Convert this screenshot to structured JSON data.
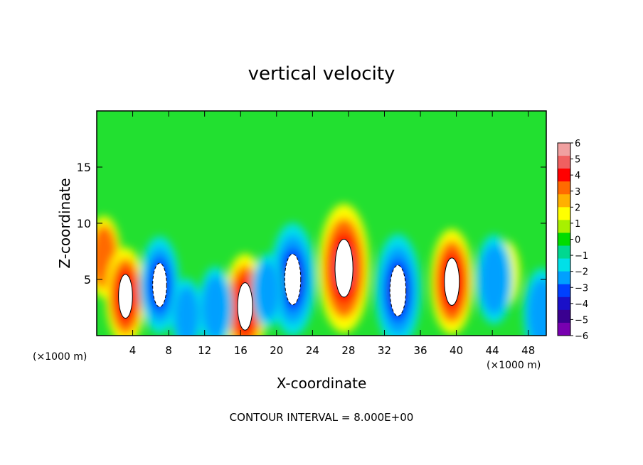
{
  "chart_data": {
    "type": "heatmap",
    "title": "vertical velocity",
    "xlabel": "X-coordinate",
    "ylabel": "Z-coordinate",
    "x_unit_left": "(×1000 m)",
    "x_unit_right": "(×1000 m)",
    "xlim": [
      0,
      50
    ],
    "ylim": [
      0,
      20
    ],
    "xticks": [
      4,
      8,
      12,
      16,
      20,
      24,
      28,
      32,
      36,
      40,
      44,
      48
    ],
    "yticks": [
      5,
      10,
      15
    ],
    "colorbar": {
      "levels": [
        6,
        5,
        4,
        3,
        2,
        1,
        0,
        -1,
        -2,
        -3,
        -4,
        -5,
        -6
      ],
      "colors": [
        "#f0a0a0",
        "#f06060",
        "#ff0000",
        "#ff6a00",
        "#ffb000",
        "#ffff00",
        "#a8f000",
        "#00dc00",
        "#00d890",
        "#00e0e8",
        "#00a0ff",
        "#0040ff",
        "#1a10c8",
        "#3a0090",
        "#7800b0"
      ]
    },
    "footer": "CONTOUR INTERVAL = 8.000E+00",
    "cells": [
      {
        "x": 27.5,
        "z": 6.0,
        "w": 0.55
      },
      {
        "x": 0.8,
        "z": 7.0,
        "w": 0.25
      },
      {
        "x": 3.2,
        "z": 3.5,
        "w": 0.35
      },
      {
        "x": 16.5,
        "z": 2.6,
        "w": 0.4
      },
      {
        "x": 39.5,
        "z": 4.8,
        "w": 0.4
      },
      {
        "x": 45.5,
        "z": 5.5,
        "w": 0.15
      },
      {
        "x": 7.0,
        "z": 4.5,
        "w": -0.35
      },
      {
        "x": 13.2,
        "z": 2.5,
        "w": -0.25
      },
      {
        "x": 21.8,
        "z": 5.0,
        "w": -0.45
      },
      {
        "x": 33.5,
        "z": 4.0,
        "w": -0.45
      },
      {
        "x": 44.2,
        "z": 5.0,
        "w": -0.3
      },
      {
        "x": 49.5,
        "z": 2.0,
        "w": -0.3
      },
      {
        "x": 10.0,
        "z": 1.8,
        "w": -0.2
      },
      {
        "x": 19.0,
        "z": 4.0,
        "w": -0.2
      }
    ]
  }
}
